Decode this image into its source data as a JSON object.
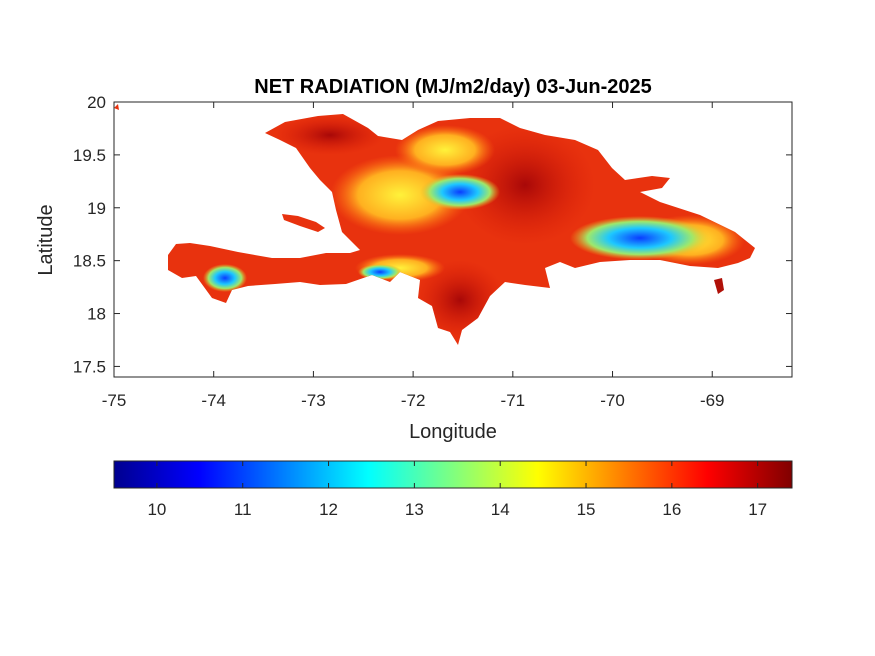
{
  "map": {
    "title": "NET RADIATION (MJ/m2/day) 03-Jun-2025",
    "xlabel": "Longitude",
    "ylabel": "Latitude",
    "xlim": [
      -75,
      -68.2
    ],
    "ylim": [
      17.4,
      20
    ],
    "x_ticks": [
      "-75",
      "-74",
      "-73",
      "-72",
      "-71",
      "-70",
      "-69"
    ],
    "x_tick_values": [
      -75,
      -74,
      -73,
      -72,
      -71,
      -70,
      -69
    ],
    "y_ticks": [
      "17.5",
      "18",
      "18.5",
      "19",
      "19.5",
      "20"
    ],
    "y_tick_values": [
      17.5,
      18,
      18.5,
      19,
      19.5,
      20
    ],
    "colorbar": {
      "colormap": "jet",
      "range": [
        9.5,
        17.4
      ],
      "ticks": [
        "10",
        "11",
        "12",
        "13",
        "14",
        "15",
        "16",
        "17"
      ],
      "tick_values": [
        10,
        11,
        12,
        13,
        14,
        15,
        16,
        17
      ]
    },
    "colors": {
      "low": "#00008f",
      "mid": "#00ffff",
      "high": "#7f0000",
      "dominant": "#e83010"
    }
  }
}
